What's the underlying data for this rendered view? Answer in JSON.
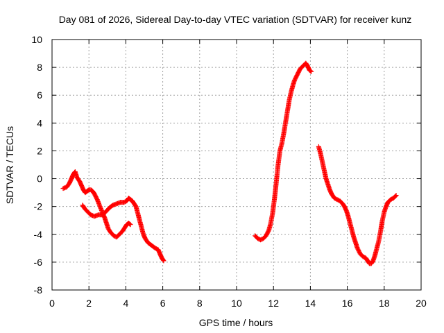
{
  "chart_data": {
    "type": "scatter",
    "title": "Day 081 of 2026, Sidereal Day-to-day VTEC variation (SDTVAR) for receiver kunz",
    "xlabel": "GPS time / hours",
    "ylabel": "SDTVAR / TECUs",
    "xlim": [
      0,
      20
    ],
    "ylim": [
      -8,
      10
    ],
    "xticks": [
      0,
      2,
      4,
      6,
      8,
      10,
      12,
      14,
      16,
      18,
      20
    ],
    "yticks": [
      -8,
      -6,
      -4,
      -2,
      0,
      2,
      4,
      6,
      8,
      10
    ],
    "grid": true,
    "marker": "+",
    "color": "#ff0000",
    "series": [
      {
        "name": "SDTVAR",
        "segments": [
          [
            [
              0.6,
              -0.7
            ],
            [
              0.8,
              -0.6
            ],
            [
              0.95,
              -0.3
            ],
            [
              1.05,
              0.0
            ],
            [
              1.15,
              0.3
            ],
            [
              1.25,
              0.5
            ],
            [
              1.35,
              0.1
            ],
            [
              1.5,
              -0.2
            ],
            [
              1.6,
              -0.5
            ],
            [
              1.7,
              -0.8
            ],
            [
              1.8,
              -1.0
            ],
            [
              1.9,
              -0.9
            ],
            [
              2.0,
              -0.8
            ],
            [
              2.1,
              -0.8
            ],
            [
              2.2,
              -0.9
            ],
            [
              2.3,
              -1.1
            ],
            [
              2.45,
              -1.5
            ],
            [
              2.6,
              -2.0
            ],
            [
              2.75,
              -2.5
            ],
            [
              2.85,
              -2.8
            ],
            [
              2.95,
              -3.2
            ],
            [
              3.05,
              -3.6
            ],
            [
              3.2,
              -3.9
            ],
            [
              3.35,
              -4.1
            ],
            [
              3.5,
              -4.2
            ],
            [
              3.65,
              -4.0
            ],
            [
              3.8,
              -3.8
            ],
            [
              3.95,
              -3.5
            ],
            [
              4.05,
              -3.3
            ],
            [
              4.15,
              -3.2
            ],
            [
              4.25,
              -3.3
            ]
          ],
          [
            [
              1.65,
              -1.9
            ],
            [
              1.8,
              -2.2
            ],
            [
              1.95,
              -2.4
            ],
            [
              2.1,
              -2.6
            ],
            [
              2.3,
              -2.7
            ],
            [
              2.5,
              -2.6
            ],
            [
              2.7,
              -2.6
            ],
            [
              2.9,
              -2.4
            ],
            [
              3.1,
              -2.1
            ],
            [
              3.3,
              -1.9
            ],
            [
              3.5,
              -1.8
            ],
            [
              3.7,
              -1.7
            ],
            [
              3.9,
              -1.7
            ],
            [
              4.05,
              -1.6
            ],
            [
              4.15,
              -1.4
            ],
            [
              4.25,
              -1.5
            ],
            [
              4.35,
              -1.6
            ],
            [
              4.45,
              -1.8
            ],
            [
              4.55,
              -2.0
            ],
            [
              4.65,
              -2.5
            ],
            [
              4.75,
              -3.0
            ],
            [
              4.85,
              -3.5
            ],
            [
              4.95,
              -4.0
            ],
            [
              5.05,
              -4.3
            ],
            [
              5.2,
              -4.6
            ],
            [
              5.4,
              -4.8
            ],
            [
              5.6,
              -5.0
            ],
            [
              5.75,
              -5.1
            ],
            [
              5.85,
              -5.4
            ],
            [
              5.95,
              -5.7
            ],
            [
              6.05,
              -5.9
            ]
          ],
          [
            [
              11.0,
              -4.1
            ],
            [
              11.15,
              -4.3
            ],
            [
              11.3,
              -4.4
            ],
            [
              11.45,
              -4.3
            ],
            [
              11.6,
              -4.1
            ],
            [
              11.75,
              -3.7
            ],
            [
              11.85,
              -3.2
            ],
            [
              11.95,
              -2.5
            ],
            [
              12.05,
              -1.5
            ],
            [
              12.15,
              -0.3
            ],
            [
              12.25,
              1.0
            ],
            [
              12.35,
              2.0
            ],
            [
              12.45,
              2.5
            ],
            [
              12.55,
              3.2
            ],
            [
              12.65,
              4.0
            ],
            [
              12.75,
              4.8
            ],
            [
              12.85,
              5.6
            ],
            [
              12.95,
              6.2
            ],
            [
              13.05,
              6.7
            ],
            [
              13.15,
              7.1
            ],
            [
              13.3,
              7.5
            ],
            [
              13.45,
              7.9
            ],
            [
              13.6,
              8.1
            ],
            [
              13.75,
              8.3
            ],
            [
              13.85,
              8.1
            ],
            [
              13.95,
              7.8
            ],
            [
              14.05,
              7.7
            ]
          ],
          [
            [
              14.45,
              2.3
            ],
            [
              14.55,
              1.8
            ],
            [
              14.65,
              1.2
            ],
            [
              14.75,
              0.6
            ],
            [
              14.85,
              0.0
            ],
            [
              14.95,
              -0.4
            ],
            [
              15.05,
              -0.8
            ],
            [
              15.15,
              -1.1
            ],
            [
              15.3,
              -1.4
            ],
            [
              15.45,
              -1.5
            ],
            [
              15.6,
              -1.6
            ],
            [
              15.75,
              -1.8
            ],
            [
              15.85,
              -2.0
            ],
            [
              15.95,
              -2.3
            ],
            [
              16.05,
              -2.7
            ],
            [
              16.15,
              -3.2
            ],
            [
              16.25,
              -3.7
            ],
            [
              16.35,
              -4.2
            ],
            [
              16.45,
              -4.6
            ],
            [
              16.55,
              -5.0
            ],
            [
              16.7,
              -5.4
            ],
            [
              16.85,
              -5.6
            ],
            [
              17.0,
              -5.7
            ],
            [
              17.1,
              -5.9
            ],
            [
              17.2,
              -6.1
            ],
            [
              17.3,
              -6.1
            ],
            [
              17.4,
              -5.9
            ],
            [
              17.5,
              -5.5
            ],
            [
              17.6,
              -5.0
            ],
            [
              17.7,
              -4.5
            ],
            [
              17.8,
              -3.8
            ],
            [
              17.9,
              -3.0
            ],
            [
              18.0,
              -2.4
            ],
            [
              18.1,
              -2.0
            ],
            [
              18.2,
              -1.7
            ],
            [
              18.35,
              -1.5
            ],
            [
              18.5,
              -1.4
            ],
            [
              18.65,
              -1.2
            ]
          ]
        ]
      }
    ]
  }
}
